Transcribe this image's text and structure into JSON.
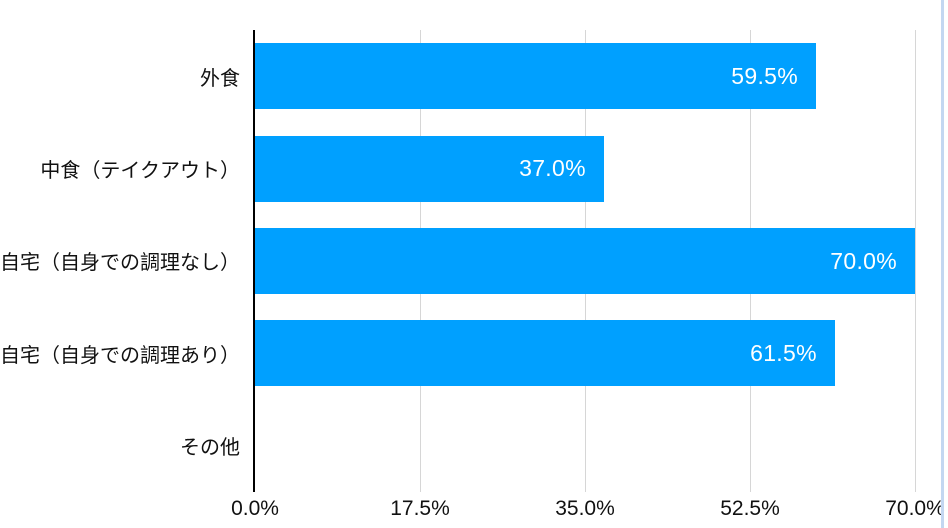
{
  "chart_data": {
    "type": "bar",
    "orientation": "horizontal",
    "title": "",
    "xlabel": "",
    "ylabel": "",
    "categories": [
      "外食",
      "中食（テイクアウト）",
      "自宅（自身での調理なし）",
      "自宅（自身での調理あり）",
      "その他"
    ],
    "values": [
      59.5,
      37.0,
      70.0,
      61.5,
      0
    ],
    "value_labels": [
      "59.5%",
      "37.0%",
      "70.0%",
      "61.5%",
      ""
    ],
    "xlim": [
      0,
      70
    ],
    "x_ticks": [
      0,
      17.5,
      35,
      52.5,
      70
    ],
    "x_tick_labels": [
      "0.0%",
      "17.5%",
      "35.0%",
      "52.5%",
      "70.0%"
    ],
    "grid": "vertical-gridlines-on",
    "legend": "none",
    "colors": {
      "bar": "#00a0ff",
      "value_label": "#ffffff",
      "axis_line": "#000000",
      "gridline": "#d6d6d6",
      "label_text": "#111111",
      "right_edge_line": "#c3d7f1",
      "background": "#ffffff"
    }
  }
}
